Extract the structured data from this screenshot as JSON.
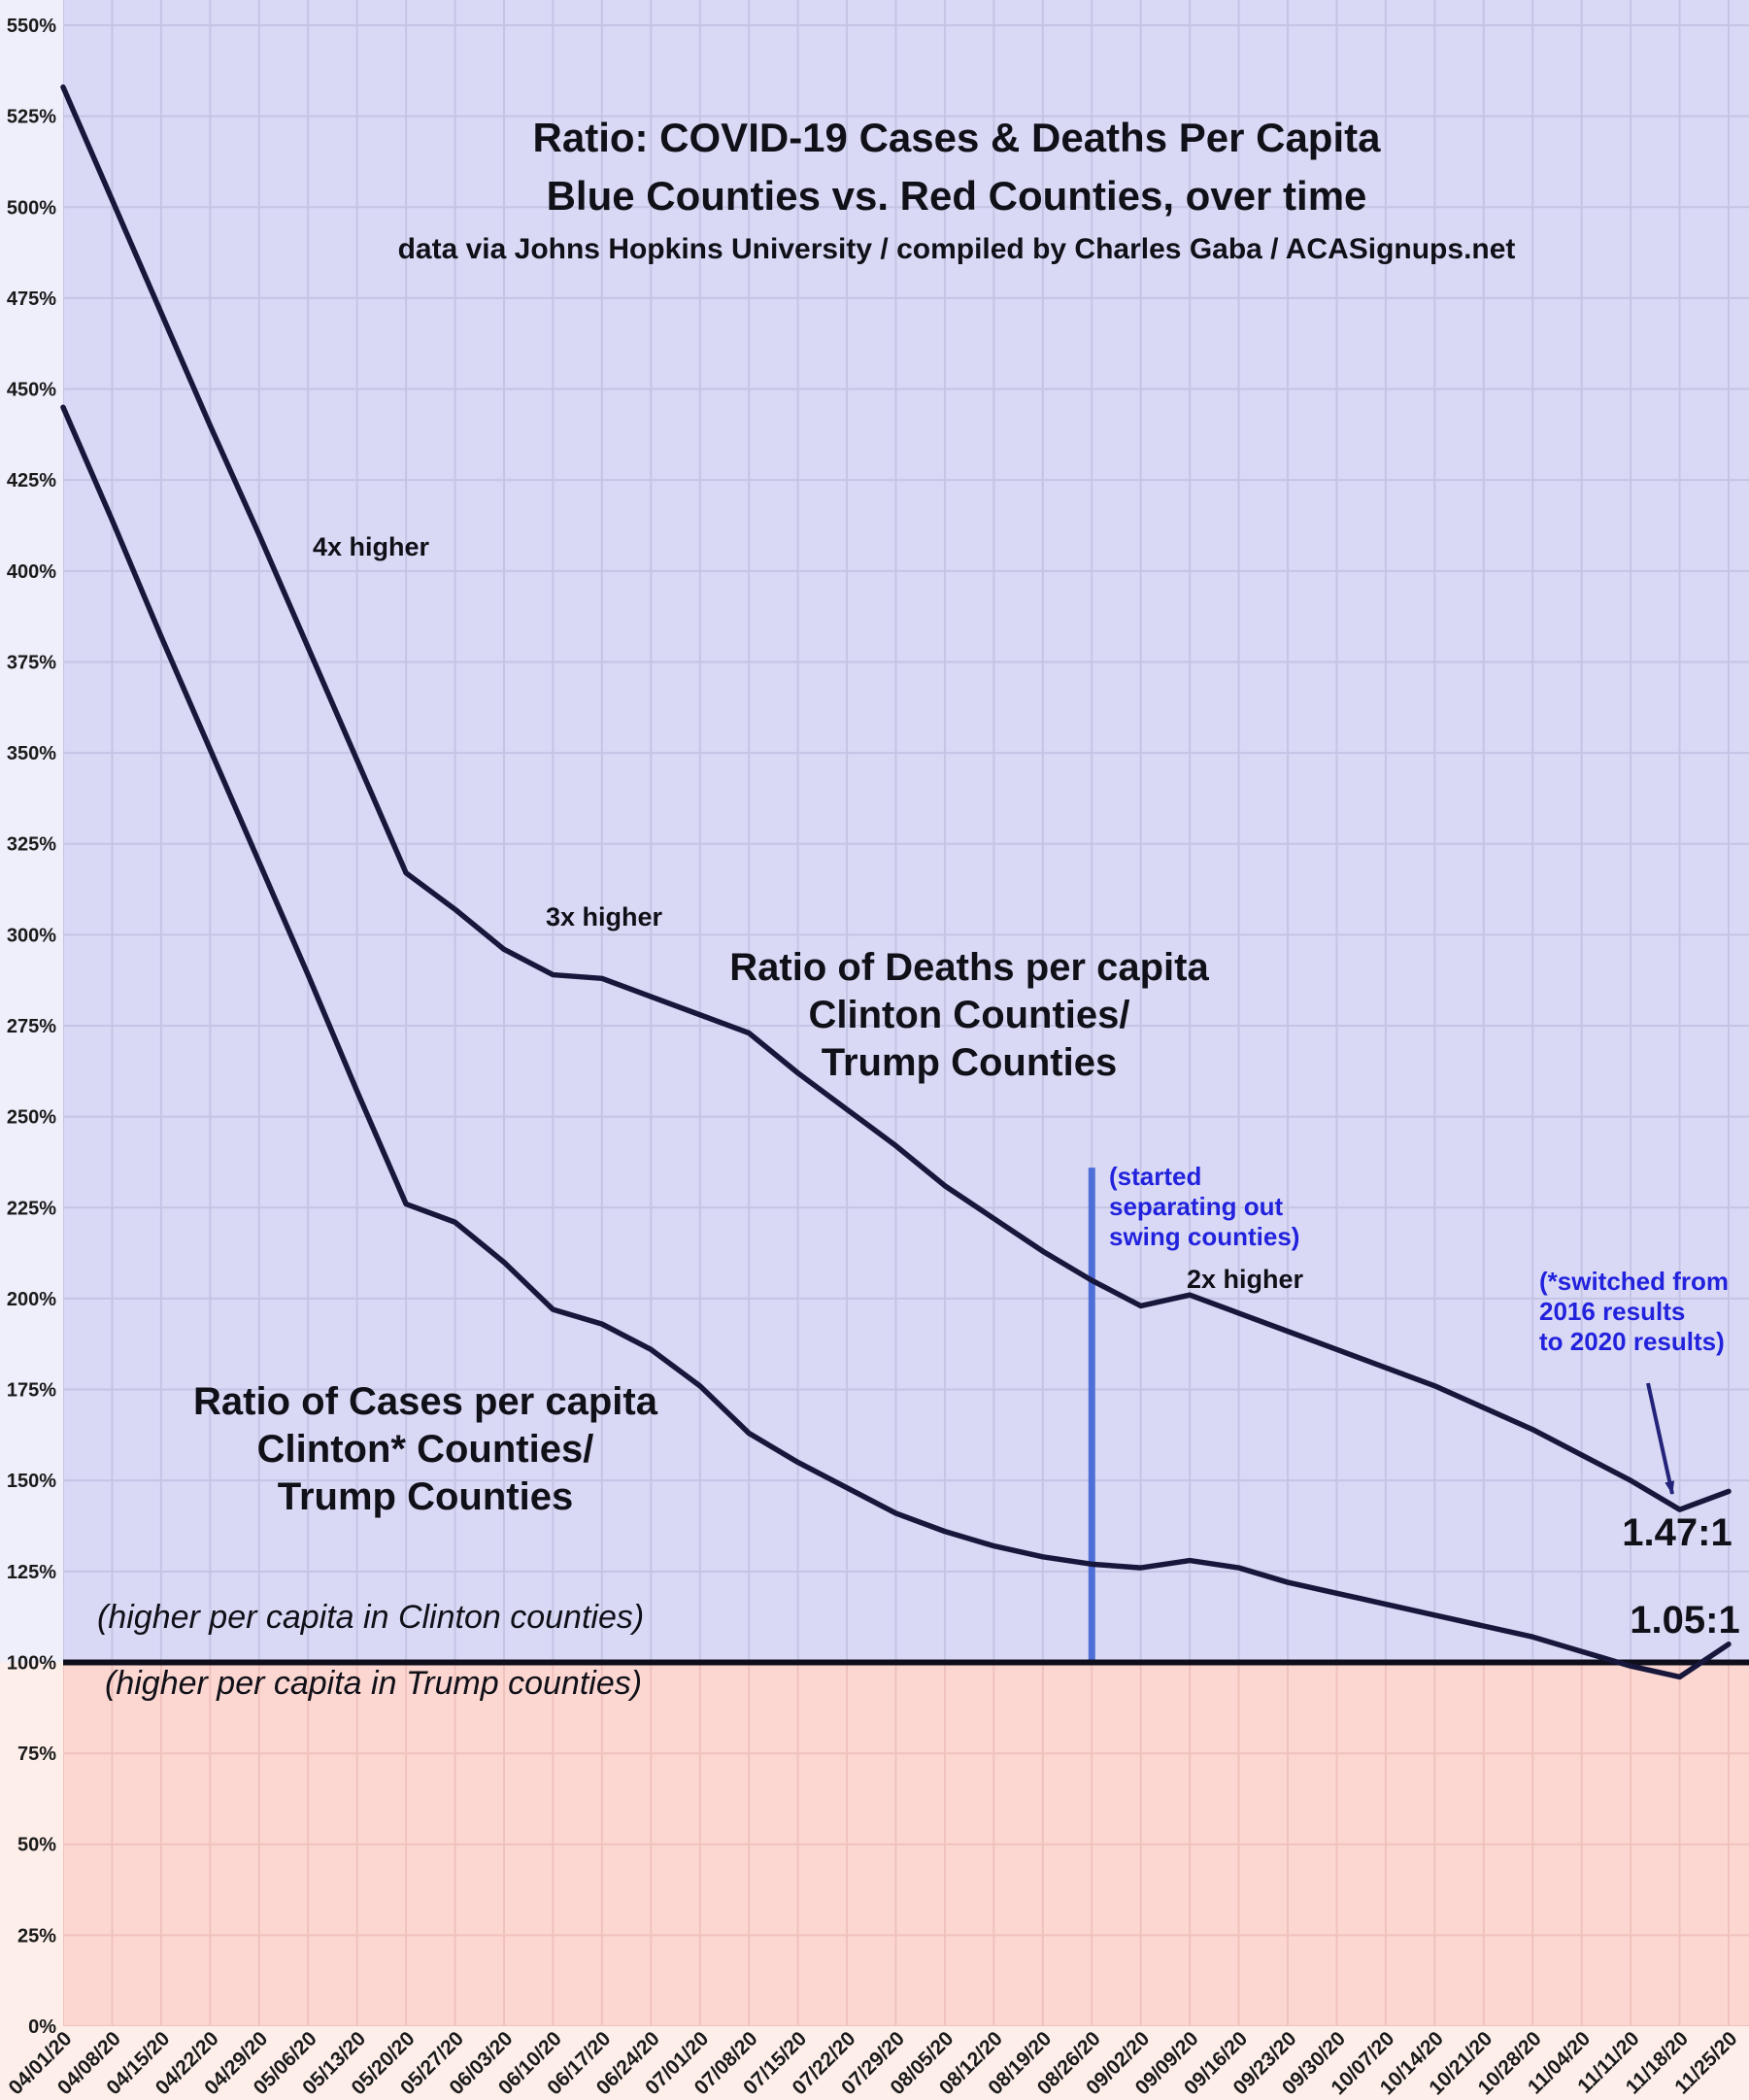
{
  "header": {
    "title": "Ratio: COVID-19 Cases & Deaths Per Capita",
    "subtitle": "Blue Counties vs. Red Counties, over time",
    "source": "data via Johns Hopkins University / compiled by Charles Gaba / ACASignups.net"
  },
  "annotations": {
    "four_x": "4x higher",
    "three_x": "3x higher",
    "two_x": "2x higher",
    "deaths_series_label": "Ratio of Deaths per capita\nClinton Counties/\nTrump Counties",
    "cases_series_label": "Ratio of Cases per capita\nClinton* Counties/\nTrump Counties",
    "above_line_note": "(higher per capita in Clinton counties)",
    "below_line_note": "(higher per capita in Trump counties)",
    "swing_note": "(started\nseparating out\nswing counties)",
    "switch_note": "(*switched from\n2016 results\nto 2020 results)",
    "deaths_final_ratio": "1.47:1",
    "cases_final_ratio": "1.05:1"
  },
  "chart_data": {
    "type": "line",
    "x": [
      "04/01/20",
      "04/08/20",
      "04/15/20",
      "04/22/20",
      "04/29/20",
      "05/06/20",
      "05/13/20",
      "05/20/20",
      "05/27/20",
      "06/03/20",
      "06/10/20",
      "06/17/20",
      "06/24/20",
      "07/01/20",
      "07/08/20",
      "07/15/20",
      "07/22/20",
      "07/29/20",
      "08/05/20",
      "08/12/20",
      "08/19/20",
      "08/26/20",
      "09/02/20",
      "09/09/20",
      "09/16/20",
      "09/23/20",
      "09/30/20",
      "10/07/20",
      "10/14/20",
      "10/21/20",
      "10/28/20",
      "11/04/20",
      "11/11/20",
      "11/18/20",
      "11/25/20"
    ],
    "series": [
      {
        "name": "Deaths per capita ratio, Clinton Counties / Trump Counties (%)",
        "values": [
          533,
          502,
          471,
          440,
          410,
          379,
          348,
          317,
          307,
          296,
          289,
          288,
          283,
          278,
          273,
          262,
          252,
          242,
          231,
          222,
          213,
          205,
          198,
          201,
          196,
          191,
          186,
          181,
          176,
          170,
          164,
          157,
          150,
          142,
          147
        ]
      },
      {
        "name": "Cases per capita ratio, Clinton* Counties / Trump Counties (%)",
        "values": [
          445,
          414,
          382,
          351,
          320,
          289,
          257,
          226,
          221,
          210,
          197,
          193,
          186,
          176,
          163,
          155,
          148,
          141,
          136,
          132,
          129,
          127,
          126,
          128,
          126,
          122,
          119,
          116,
          113,
          110,
          107,
          103,
          99,
          96,
          105
        ]
      }
    ],
    "y_unit": "%",
    "ylim": [
      0,
      550
    ],
    "ytick_step": 25,
    "baseline_pct": 100,
    "swing_line_x": "08/26/20",
    "swing_line_top_pct": 236,
    "grid": true,
    "legend_position": "none",
    "colors": {
      "line": "#17173c",
      "baseline": "#0e0e1c",
      "swing_line": "#4f6fd8",
      "bg_above": "#d9d9f6",
      "bg_below": "#fcd7d2",
      "margin_above": "#efeffc",
      "margin_below": "#fdeeea",
      "grid_above": "#c4c4e4",
      "grid_below": "#f0c2bc",
      "annotation_blue": "#2222dd",
      "arrow": "#23237a",
      "tick_text": "#1a1a1a"
    }
  }
}
